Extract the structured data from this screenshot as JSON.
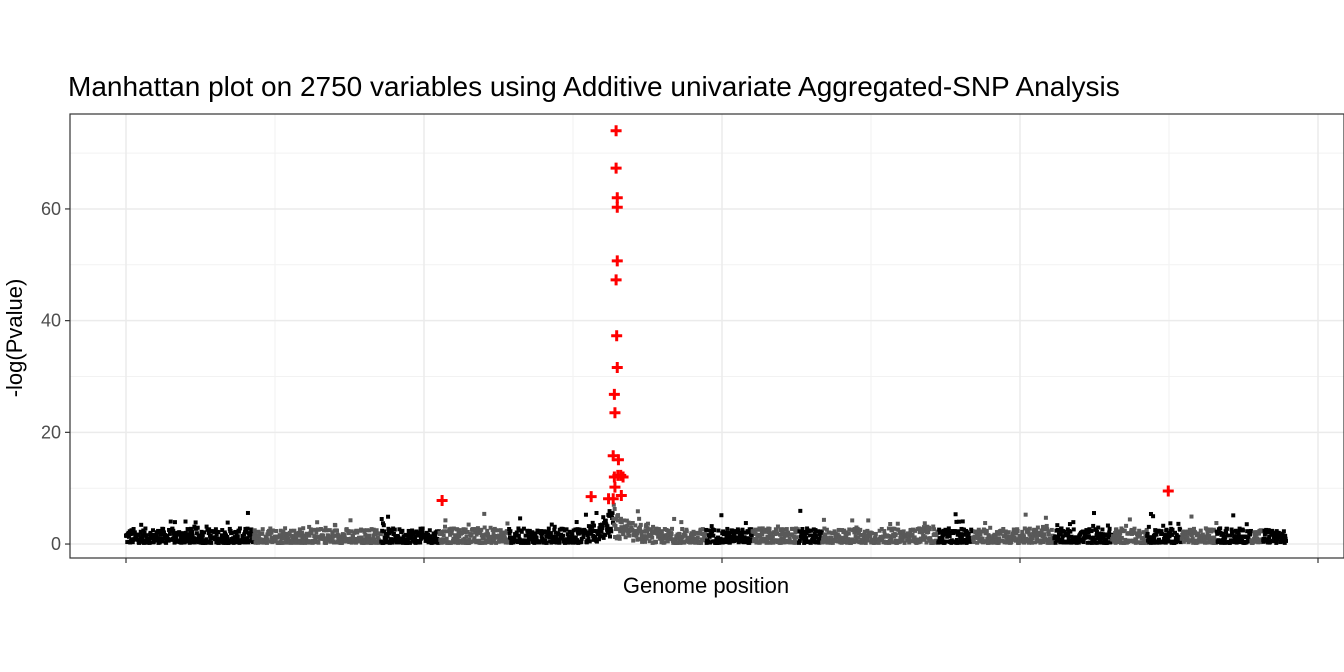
{
  "chart_data": {
    "type": "scatter",
    "title": "Manhattan plot on 2750 variables using Additive univariate Aggregated-SNP Analysis",
    "xlabel": "Genome position",
    "ylabel": "-log(Pvalue)",
    "ylim": [
      -2.5,
      77
    ],
    "y_ticks": [
      0,
      20,
      40,
      60
    ],
    "y_tick_labels": [
      "0",
      "20",
      "40",
      "60"
    ],
    "x_tick_labels": [],
    "grid": true,
    "legend": "none",
    "colors": {
      "chrom_dark": "#000000",
      "chrom_gray": "#595959",
      "significant": "#ff0000",
      "grid": "#ebebeb",
      "panel_border": "#333333"
    },
    "background_points": {
      "count": 2750,
      "x_range": [
        0,
        1
      ],
      "chromosome_breaks": [
        0,
        0.11,
        0.22,
        0.27,
        0.33,
        0.42,
        0.5,
        0.54,
        0.58,
        0.6,
        0.7,
        0.73,
        0.8,
        0.85,
        0.88,
        0.91,
        0.94,
        0.97,
        0.98,
        1
      ],
      "typical_max": 4
    },
    "significant_points": [
      {
        "x": 0.2725,
        "y": 7.8
      },
      {
        "x": 0.4225,
        "y": 74
      },
      {
        "x": 0.4225,
        "y": 67.3
      },
      {
        "x": 0.4235,
        "y": 62
      },
      {
        "x": 0.4235,
        "y": 60.3
      },
      {
        "x": 0.4235,
        "y": 50.7
      },
      {
        "x": 0.4225,
        "y": 47.3
      },
      {
        "x": 0.423,
        "y": 37.3
      },
      {
        "x": 0.4235,
        "y": 31.6
      },
      {
        "x": 0.421,
        "y": 26.8
      },
      {
        "x": 0.4215,
        "y": 23.5
      },
      {
        "x": 0.42,
        "y": 15.8
      },
      {
        "x": 0.4245,
        "y": 15.1
      },
      {
        "x": 0.421,
        "y": 12.0
      },
      {
        "x": 0.424,
        "y": 12.3
      },
      {
        "x": 0.4265,
        "y": 12.3
      },
      {
        "x": 0.4285,
        "y": 12.0
      },
      {
        "x": 0.4215,
        "y": 10.2
      },
      {
        "x": 0.401,
        "y": 8.5
      },
      {
        "x": 0.416,
        "y": 8.1
      },
      {
        "x": 0.42,
        "y": 8.1
      },
      {
        "x": 0.427,
        "y": 8.7
      },
      {
        "x": 0.8985,
        "y": 9.5
      }
    ]
  }
}
